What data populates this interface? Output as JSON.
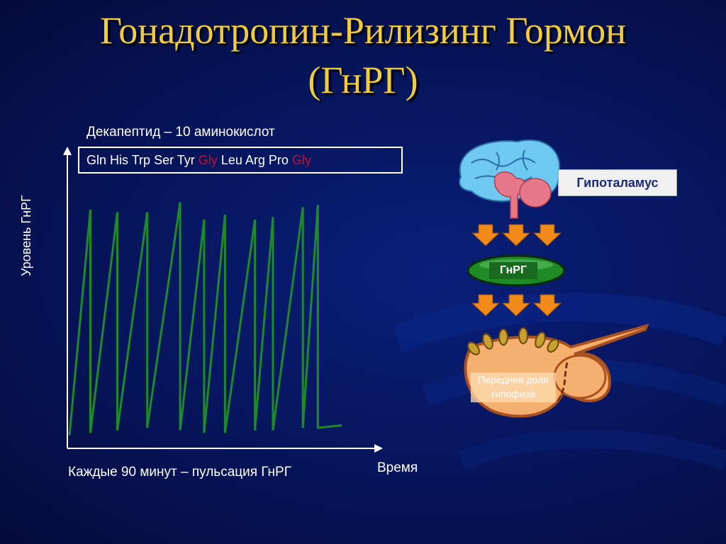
{
  "slide": {
    "title_line1": "Гонадотропин-Рилизинг Гормон",
    "title_line2": "(ГнРГ)"
  },
  "peptide": {
    "caption": "Декапептид – 10 аминокислот",
    "acids": [
      "Gln",
      "His",
      "Trp",
      "Ser",
      "Tyr",
      "Gly",
      "Leu",
      "Arg",
      "Pro",
      "Gly"
    ],
    "highlight_color": "#c8102e"
  },
  "pulse_chart": {
    "ylabel": "Уровень ГнРГ",
    "xlabel": "Время",
    "caption": "Каждые 90 минут – пульсация ГнРГ",
    "line_color": "#1e8a2c"
  },
  "chart_data": {
    "type": "line",
    "title": "",
    "xlabel": "Время",
    "ylabel": "Уровень ГнРГ",
    "series": [
      {
        "x": [
          0.0,
          0.07,
          0.07,
          0.16,
          0.16,
          0.26,
          0.26,
          0.37,
          0.37,
          0.45,
          0.45,
          0.52,
          0.52,
          0.62,
          0.62,
          0.68,
          0.68,
          0.78,
          0.78,
          0.83,
          0.83,
          0.91
        ],
        "y": [
          0.03,
          0.94,
          0.04,
          0.93,
          0.05,
          0.93,
          0.06,
          0.97,
          0.05,
          0.9,
          0.04,
          0.92,
          0.04,
          0.9,
          0.05,
          0.91,
          0.05,
          0.95,
          0.06,
          0.96,
          0.06,
          0.07
        ]
      }
    ]
  },
  "diagram": {
    "hypothalamus_label": "Гипоталамус",
    "hormone_label": "ГнРГ",
    "pituitary_label": "Передняя доля гипофиза",
    "arrow_color": "#f28a1a"
  }
}
